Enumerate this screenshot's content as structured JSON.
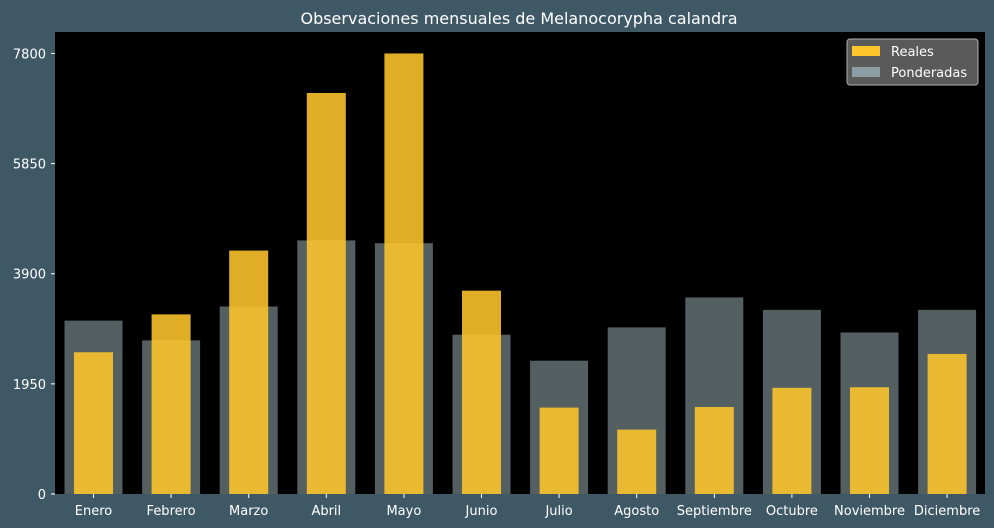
{
  "chart_data": {
    "type": "bar",
    "title": "Observaciones mensuales de Melanocorypha calandra",
    "xlabel": "",
    "ylabel": "",
    "categories": [
      "Enero",
      "Febrero",
      "Marzo",
      "Abril",
      "Mayo",
      "Junio",
      "Julio",
      "Agosto",
      "Septiembre",
      "Octubre",
      "Noviembre",
      "Diciembre"
    ],
    "series": [
      {
        "name": "Reales",
        "color": "#ffc62b",
        "values": [
          2510,
          3180,
          4310,
          7100,
          7800,
          3600,
          1530,
          1140,
          1540,
          1880,
          1890,
          2480
        ]
      },
      {
        "name": "Ponderadas",
        "color": "#8c9ea3",
        "values": [
          3070,
          2720,
          3320,
          4490,
          4440,
          2820,
          2360,
          2950,
          3480,
          3260,
          2860,
          3260
        ]
      }
    ],
    "ylim": [
      0,
      8180
    ],
    "yticks": [
      0,
      1950,
      3900,
      5850,
      7800
    ],
    "grid": false,
    "legend_position": "top-right"
  }
}
